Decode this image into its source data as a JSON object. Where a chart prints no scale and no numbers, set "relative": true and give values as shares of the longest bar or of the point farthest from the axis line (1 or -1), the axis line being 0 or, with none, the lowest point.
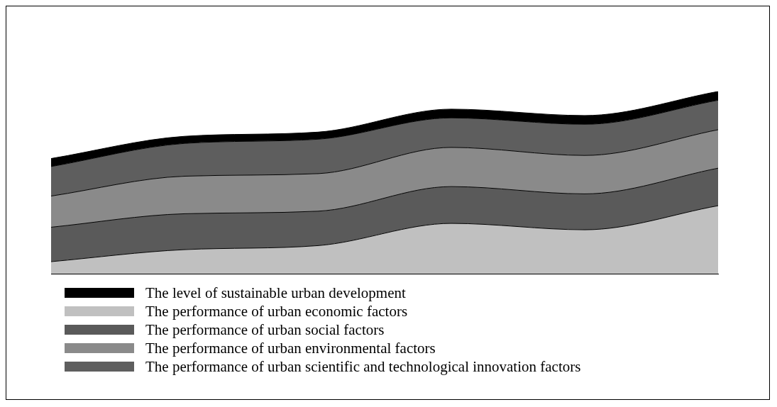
{
  "chart_data": {
    "type": "area",
    "stacked": true,
    "relative": true,
    "legend": "bottom",
    "categories": [
      null,
      null,
      null,
      null,
      null,
      null
    ],
    "series": [
      {
        "name": "The performance of urban economic factors",
        "color": "#c0c0c0",
        "values": [
          0.066,
          0.132,
          0.154,
          0.276,
          0.241,
          0.373
        ]
      },
      {
        "name": "The performance of urban social factors",
        "color": "#5a5a5a",
        "values": [
          0.189,
          0.197,
          0.189,
          0.202,
          0.197,
          0.206
        ]
      },
      {
        "name": "The performance of urban environmental factors",
        "color": "#8a8a8a",
        "values": [
          0.171,
          0.206,
          0.206,
          0.215,
          0.211,
          0.211
        ]
      },
      {
        "name": "The performance of urban scientific and technological innovation factors",
        "color": "#5e5e5e",
        "values": [
          0.162,
          0.18,
          0.189,
          0.162,
          0.171,
          0.162
        ]
      },
      {
        "name": "The level of sustainable urban development",
        "color": "#000000",
        "values": [
          0.044,
          0.039,
          0.039,
          0.048,
          0.048,
          0.048
        ]
      }
    ]
  }
}
